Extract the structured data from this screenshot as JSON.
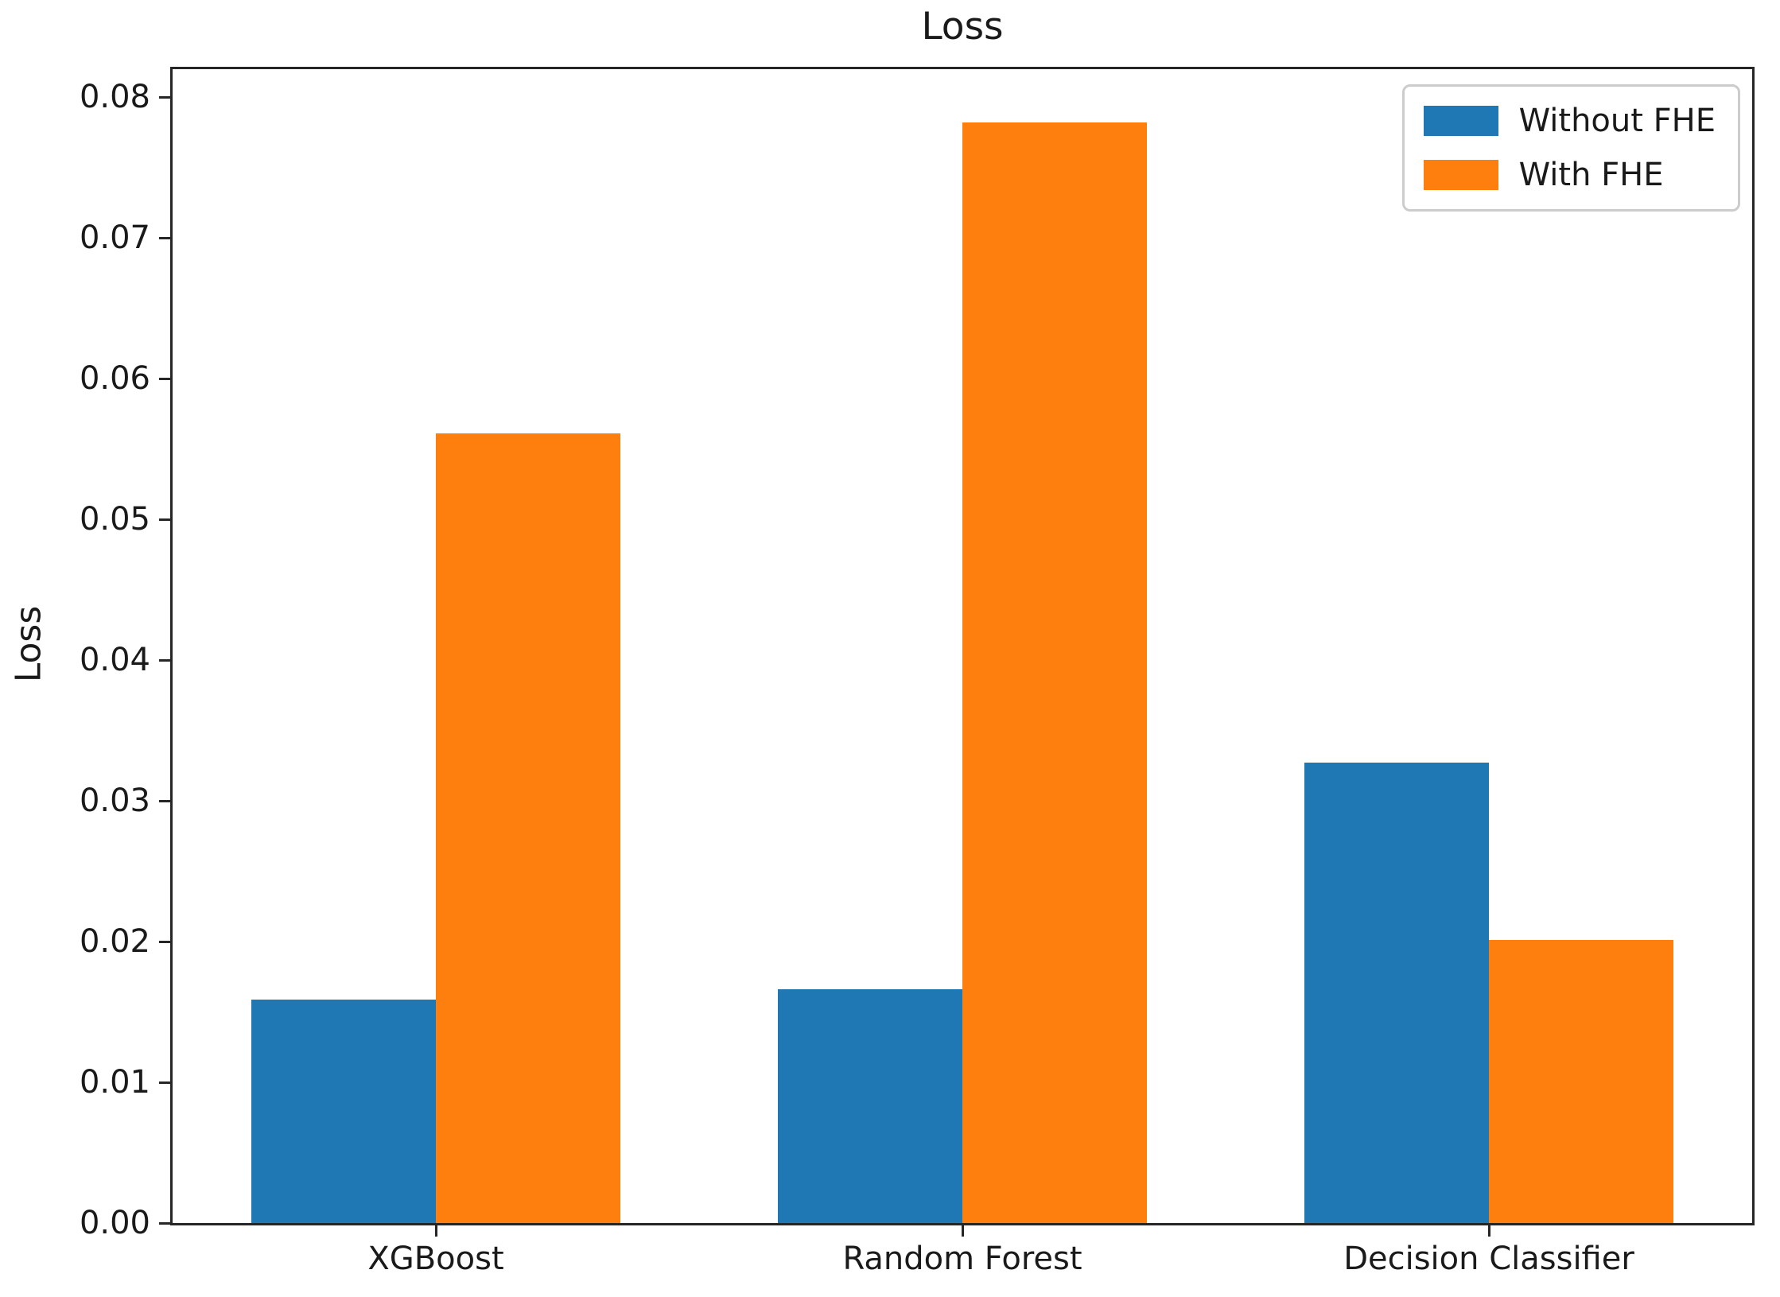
{
  "chart_data": {
    "type": "bar",
    "title": "Loss",
    "ylabel": "Loss",
    "xlabel": "",
    "categories": [
      "XGBoost",
      "Random Forest",
      "Decision Classifier"
    ],
    "series": [
      {
        "name": "Without FHE",
        "color": "#1f77b4",
        "values": [
          0.0159,
          0.0166,
          0.0327
        ]
      },
      {
        "name": "With FHE",
        "color": "#ff7f0e",
        "values": [
          0.0561,
          0.0782,
          0.0201
        ]
      }
    ],
    "ylim": [
      0,
      0.082
    ],
    "ytick_labels": [
      "0.00",
      "0.01",
      "0.02",
      "0.03",
      "0.04",
      "0.05",
      "0.06",
      "0.07",
      "0.08"
    ],
    "bar_width_fraction": 0.35,
    "legend_position": "upper-right",
    "grid": false,
    "background": "#ffffff",
    "spine_color": "#262626",
    "text_color": "#1a1a1a"
  }
}
